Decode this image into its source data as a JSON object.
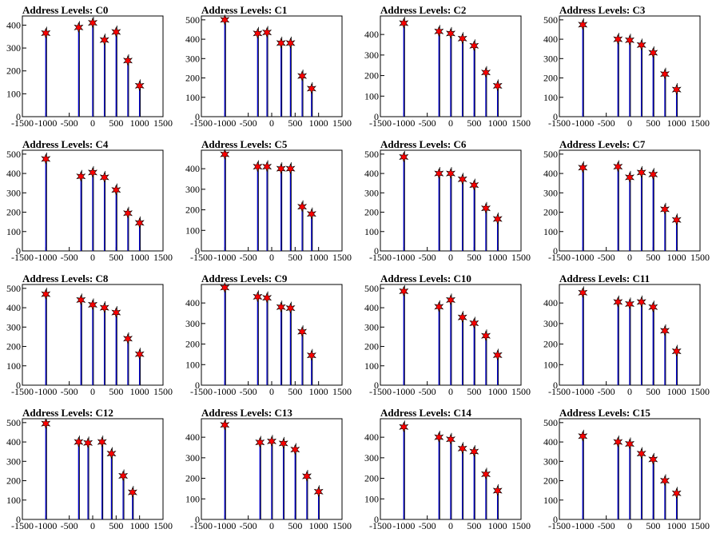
{
  "chart_data": [
    {
      "type": "bar",
      "title": "Address Levels: C0",
      "xlim": [
        -1500,
        1500
      ],
      "ylim": [
        0,
        440
      ],
      "xticks": [
        -1500,
        -1000,
        -500,
        0,
        500,
        1000,
        1500
      ],
      "yticks": [
        0,
        100,
        200,
        300,
        400
      ],
      "peaks": [
        {
          "x": -1000,
          "y": 365
        },
        {
          "x": -300,
          "y": 390
        },
        {
          "x": 0,
          "y": 410
        },
        {
          "x": 250,
          "y": 335
        },
        {
          "x": 500,
          "y": 370
        },
        {
          "x": 750,
          "y": 245
        },
        {
          "x": 1000,
          "y": 135
        }
      ]
    },
    {
      "type": "bar",
      "title": "Address Levels: C1",
      "xlim": [
        -1500,
        1500
      ],
      "ylim": [
        0,
        520
      ],
      "xticks": [
        -1500,
        -1000,
        -500,
        0,
        500,
        1000,
        1500
      ],
      "yticks": [
        0,
        100,
        200,
        300,
        400,
        500
      ],
      "peaks": [
        {
          "x": -1000,
          "y": 500
        },
        {
          "x": -300,
          "y": 430
        },
        {
          "x": -100,
          "y": 435
        },
        {
          "x": 200,
          "y": 380
        },
        {
          "x": 400,
          "y": 380
        },
        {
          "x": 650,
          "y": 210
        },
        {
          "x": 850,
          "y": 145
        }
      ]
    },
    {
      "type": "bar",
      "title": "Address Levels: C2",
      "xlim": [
        -1500,
        1500
      ],
      "ylim": [
        0,
        490
      ],
      "xticks": [
        -1500,
        -1000,
        -500,
        0,
        500,
        1000,
        1500
      ],
      "yticks": [
        0,
        100,
        200,
        300,
        400
      ],
      "peaks": [
        {
          "x": -1000,
          "y": 455
        },
        {
          "x": -250,
          "y": 415
        },
        {
          "x": 0,
          "y": 405
        },
        {
          "x": 250,
          "y": 380
        },
        {
          "x": 500,
          "y": 345
        },
        {
          "x": 750,
          "y": 215
        },
        {
          "x": 1000,
          "y": 150
        }
      ]
    },
    {
      "type": "bar",
      "title": "Address Levels: C3",
      "xlim": [
        -1500,
        1500
      ],
      "ylim": [
        0,
        520
      ],
      "xticks": [
        -1500,
        -1000,
        -500,
        0,
        500,
        1000,
        1500
      ],
      "yticks": [
        0,
        100,
        200,
        300,
        400,
        500
      ],
      "peaks": [
        {
          "x": -1000,
          "y": 475
        },
        {
          "x": -250,
          "y": 400
        },
        {
          "x": 0,
          "y": 395
        },
        {
          "x": 250,
          "y": 370
        },
        {
          "x": 500,
          "y": 330
        },
        {
          "x": 750,
          "y": 220
        },
        {
          "x": 1000,
          "y": 140
        }
      ]
    },
    {
      "type": "bar",
      "title": "Address Levels: C4",
      "xlim": [
        -1500,
        1500
      ],
      "ylim": [
        0,
        520
      ],
      "xticks": [
        -1500,
        -1000,
        -500,
        0,
        500,
        1000,
        1500
      ],
      "yticks": [
        0,
        100,
        200,
        300,
        400,
        500
      ],
      "peaks": [
        {
          "x": -1000,
          "y": 475
        },
        {
          "x": -250,
          "y": 385
        },
        {
          "x": 0,
          "y": 405
        },
        {
          "x": 250,
          "y": 380
        },
        {
          "x": 500,
          "y": 315
        },
        {
          "x": 750,
          "y": 195
        },
        {
          "x": 1000,
          "y": 145
        }
      ]
    },
    {
      "type": "bar",
      "title": "Address Levels: C5",
      "xlim": [
        -1500,
        1500
      ],
      "ylim": [
        0,
        490
      ],
      "xticks": [
        -1500,
        -1000,
        -500,
        0,
        500,
        1000,
        1500
      ],
      "yticks": [
        0,
        100,
        200,
        300,
        400
      ],
      "peaks": [
        {
          "x": -1000,
          "y": 470
        },
        {
          "x": -300,
          "y": 410
        },
        {
          "x": -100,
          "y": 410
        },
        {
          "x": 200,
          "y": 400
        },
        {
          "x": 400,
          "y": 400
        },
        {
          "x": 650,
          "y": 215
        },
        {
          "x": 850,
          "y": 180
        }
      ]
    },
    {
      "type": "bar",
      "title": "Address Levels: C6",
      "xlim": [
        -1500,
        1500
      ],
      "ylim": [
        0,
        520
      ],
      "xticks": [
        -1500,
        -1000,
        -500,
        0,
        500,
        1000,
        1500
      ],
      "yticks": [
        0,
        100,
        200,
        300,
        400,
        500
      ],
      "peaks": [
        {
          "x": -1000,
          "y": 485
        },
        {
          "x": -250,
          "y": 400
        },
        {
          "x": 0,
          "y": 400
        },
        {
          "x": 250,
          "y": 370
        },
        {
          "x": 500,
          "y": 340
        },
        {
          "x": 750,
          "y": 220
        },
        {
          "x": 1000,
          "y": 165
        }
      ]
    },
    {
      "type": "bar",
      "title": "Address Levels: C7",
      "xlim": [
        -1500,
        1500
      ],
      "ylim": [
        0,
        520
      ],
      "xticks": [
        -1500,
        -1000,
        -500,
        0,
        500,
        1000,
        1500
      ],
      "yticks": [
        0,
        100,
        200,
        300,
        400,
        500
      ],
      "peaks": [
        {
          "x": -1000,
          "y": 430
        },
        {
          "x": -250,
          "y": 435
        },
        {
          "x": 0,
          "y": 380
        },
        {
          "x": 250,
          "y": 405
        },
        {
          "x": 500,
          "y": 395
        },
        {
          "x": 750,
          "y": 215
        },
        {
          "x": 1000,
          "y": 160
        }
      ]
    },
    {
      "type": "bar",
      "title": "Address Levels: C8",
      "xlim": [
        -1500,
        1500
      ],
      "ylim": [
        0,
        520
      ],
      "xticks": [
        -1500,
        -1000,
        -500,
        0,
        500,
        1000,
        1500
      ],
      "yticks": [
        0,
        100,
        200,
        300,
        400,
        500
      ],
      "peaks": [
        {
          "x": -1000,
          "y": 470
        },
        {
          "x": -250,
          "y": 440
        },
        {
          "x": 0,
          "y": 415
        },
        {
          "x": 250,
          "y": 400
        },
        {
          "x": 500,
          "y": 375
        },
        {
          "x": 750,
          "y": 240
        },
        {
          "x": 1000,
          "y": 160
        }
      ]
    },
    {
      "type": "bar",
      "title": "Address Levels: C9",
      "xlim": [
        -1500,
        1500
      ],
      "ylim": [
        0,
        490
      ],
      "xticks": [
        -1500,
        -1000,
        -500,
        0,
        500,
        1000,
        1500
      ],
      "yticks": [
        0,
        100,
        200,
        300,
        400
      ],
      "peaks": [
        {
          "x": -1000,
          "y": 475
        },
        {
          "x": -300,
          "y": 430
        },
        {
          "x": -100,
          "y": 425
        },
        {
          "x": 200,
          "y": 380
        },
        {
          "x": 400,
          "y": 375
        },
        {
          "x": 650,
          "y": 260
        },
        {
          "x": 850,
          "y": 145
        }
      ]
    },
    {
      "type": "bar",
      "title": "Address Levels: C10",
      "xlim": [
        -1500,
        1500
      ],
      "ylim": [
        0,
        520
      ],
      "xticks": [
        -1500,
        -1000,
        -500,
        0,
        500,
        1000,
        1500
      ],
      "yticks": [
        0,
        100,
        200,
        300,
        400,
        500
      ],
      "peaks": [
        {
          "x": -1000,
          "y": 485
        },
        {
          "x": -250,
          "y": 405
        },
        {
          "x": 0,
          "y": 440
        },
        {
          "x": 250,
          "y": 350
        },
        {
          "x": 500,
          "y": 320
        },
        {
          "x": 750,
          "y": 255
        },
        {
          "x": 1000,
          "y": 155
        }
      ]
    },
    {
      "type": "bar",
      "title": "Address Levels: C11",
      "xlim": [
        -1500,
        1500
      ],
      "ylim": [
        0,
        490
      ],
      "xticks": [
        -1500,
        -1000,
        -500,
        0,
        500,
        1000,
        1500
      ],
      "yticks": [
        0,
        100,
        200,
        300,
        400
      ],
      "peaks": [
        {
          "x": -1000,
          "y": 450
        },
        {
          "x": -250,
          "y": 405
        },
        {
          "x": 0,
          "y": 395
        },
        {
          "x": 250,
          "y": 405
        },
        {
          "x": 500,
          "y": 380
        },
        {
          "x": 750,
          "y": 265
        },
        {
          "x": 1000,
          "y": 165
        }
      ]
    },
    {
      "type": "bar",
      "title": "Address Levels: C12",
      "xlim": [
        -1500,
        1500
      ],
      "ylim": [
        0,
        520
      ],
      "xticks": [
        -1500,
        -1000,
        -500,
        0,
        500,
        1000,
        1500
      ],
      "yticks": [
        0,
        100,
        200,
        300,
        400,
        500
      ],
      "peaks": [
        {
          "x": -1000,
          "y": 495
        },
        {
          "x": -300,
          "y": 400
        },
        {
          "x": -100,
          "y": 395
        },
        {
          "x": 200,
          "y": 400
        },
        {
          "x": 400,
          "y": 340
        },
        {
          "x": 650,
          "y": 225
        },
        {
          "x": 850,
          "y": 140
        }
      ]
    },
    {
      "type": "bar",
      "title": "Address Levels: C13",
      "xlim": [
        -1500,
        1500
      ],
      "ylim": [
        0,
        490
      ],
      "xticks": [
        -1500,
        -1000,
        -500,
        0,
        500,
        1000,
        1500
      ],
      "yticks": [
        0,
        100,
        200,
        300,
        400
      ],
      "peaks": [
        {
          "x": -1000,
          "y": 460
        },
        {
          "x": -250,
          "y": 375
        },
        {
          "x": 0,
          "y": 380
        },
        {
          "x": 250,
          "y": 370
        },
        {
          "x": 500,
          "y": 340
        },
        {
          "x": 750,
          "y": 210
        },
        {
          "x": 1000,
          "y": 135
        }
      ]
    },
    {
      "type": "bar",
      "title": "Address Levels: C14",
      "xlim": [
        -1500,
        1500
      ],
      "ylim": [
        0,
        490
      ],
      "xticks": [
        -1500,
        -1000,
        -500,
        0,
        500,
        1000,
        1500
      ],
      "yticks": [
        0,
        100,
        200,
        300,
        400
      ],
      "peaks": [
        {
          "x": -1000,
          "y": 450
        },
        {
          "x": -250,
          "y": 400
        },
        {
          "x": 0,
          "y": 390
        },
        {
          "x": 250,
          "y": 345
        },
        {
          "x": 500,
          "y": 330
        },
        {
          "x": 750,
          "y": 220
        },
        {
          "x": 1000,
          "y": 140
        }
      ]
    },
    {
      "type": "bar",
      "title": "Address Levels: C15",
      "xlim": [
        -1500,
        1500
      ],
      "ylim": [
        0,
        520
      ],
      "xticks": [
        -1500,
        -1000,
        -500,
        0,
        500,
        1000,
        1500
      ],
      "yticks": [
        0,
        100,
        200,
        300,
        400,
        500
      ],
      "peaks": [
        {
          "x": -1000,
          "y": 430
        },
        {
          "x": -250,
          "y": 400
        },
        {
          "x": 0,
          "y": 390
        },
        {
          "x": 250,
          "y": 340
        },
        {
          "x": 500,
          "y": 310
        },
        {
          "x": 750,
          "y": 200
        },
        {
          "x": 1000,
          "y": 135
        }
      ]
    }
  ]
}
